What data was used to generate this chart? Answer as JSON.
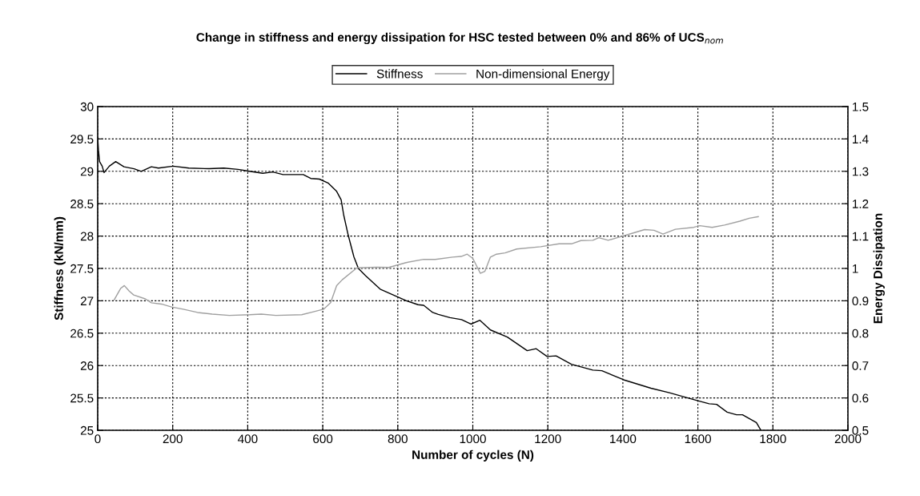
{
  "chart_data": {
    "type": "line",
    "title": "Change in stiffness and energy dissipation for HSC tested between 0% and 86% of UCS$_{nom}$",
    "xlabel": "Number of cycles (N)",
    "ylabel": "Stiffness (kN/mm)",
    "y2label": "Energy Dissipation",
    "xlim": [
      0,
      2000
    ],
    "xticks": [
      0,
      200,
      400,
      600,
      800,
      1000,
      1200,
      1400,
      1600,
      1800,
      2000
    ],
    "ylim": [
      25,
      30
    ],
    "yticks": [
      25,
      25.5,
      26,
      26.5,
      27,
      27.5,
      28,
      28.5,
      29,
      29.5,
      30
    ],
    "y2lim": [
      0.5,
      1.5
    ],
    "y2ticks": [
      0.5,
      0.6,
      0.7,
      0.8,
      0.9,
      1,
      1.1,
      1.2,
      1.3,
      1.4,
      1.5
    ],
    "grid": true,
    "legend": "top",
    "line_style": "solid",
    "marker": "none",
    "series": [
      {
        "name": "Stiffness",
        "color": "#000000",
        "x": [
          0,
          2,
          5,
          12,
          17,
          31,
          48,
          70,
          97,
          116,
          143,
          162,
          201,
          243,
          297,
          336,
          374,
          405,
          440,
          467,
          494,
          548,
          568,
          591,
          614,
          637,
          649,
          656,
          668,
          683,
          695,
          714,
          753,
          800,
          823,
          854,
          869,
          893,
          908,
          939,
          970,
          995,
          1019,
          1047,
          1092,
          1145,
          1169,
          1198,
          1222,
          1263,
          1320,
          1344,
          1402,
          1475,
          1524,
          1598,
          1630,
          1650,
          1678,
          1703,
          1719,
          1756,
          1768
        ],
        "values": [
          29.52,
          29.33,
          29.15,
          29.08,
          28.98,
          29.08,
          29.15,
          29.07,
          29.04,
          29.0,
          29.07,
          29.05,
          29.08,
          29.05,
          29.04,
          29.05,
          29.03,
          29.0,
          28.97,
          28.99,
          28.95,
          28.95,
          28.89,
          28.88,
          28.82,
          28.69,
          28.56,
          28.32,
          28.01,
          27.68,
          27.5,
          27.39,
          27.18,
          27.06,
          27.0,
          26.94,
          26.93,
          26.82,
          26.79,
          26.74,
          26.71,
          26.64,
          26.7,
          26.55,
          26.44,
          26.23,
          26.26,
          26.14,
          26.15,
          26.02,
          25.93,
          25.92,
          25.78,
          25.65,
          25.58,
          25.46,
          25.41,
          25.4,
          25.28,
          25.24,
          25.24,
          25.12,
          25.0
        ]
      },
      {
        "name": "Non-dimensional Energy",
        "color": "#a0a0a0",
        "axis": "y2",
        "x": [
          44,
          61,
          71,
          84,
          96,
          127,
          143,
          170,
          197,
          228,
          266,
          305,
          351,
          405,
          436,
          475,
          544,
          575,
          602,
          621,
          637,
          652,
          691,
          745,
          776,
          822,
          869,
          900,
          946,
          969,
          985,
          1000,
          1020,
          1032,
          1047,
          1063,
          1086,
          1117,
          1181,
          1230,
          1263,
          1288,
          1320,
          1336,
          1361,
          1385,
          1426,
          1458,
          1483,
          1507,
          1540,
          1589,
          1605,
          1638,
          1671,
          1712,
          1737,
          1761
        ],
        "values": [
          0.903,
          0.938,
          0.947,
          0.93,
          0.918,
          0.906,
          0.894,
          0.89,
          0.881,
          0.874,
          0.864,
          0.859,
          0.855,
          0.857,
          0.859,
          0.855,
          0.857,
          0.866,
          0.874,
          0.894,
          0.947,
          0.965,
          1.002,
          1.004,
          1.003,
          1.018,
          1.028,
          1.028,
          1.035,
          1.037,
          1.044,
          1.031,
          0.985,
          0.991,
          1.035,
          1.044,
          1.048,
          1.06,
          1.067,
          1.076,
          1.076,
          1.086,
          1.087,
          1.095,
          1.087,
          1.095,
          1.109,
          1.12,
          1.118,
          1.106,
          1.121,
          1.127,
          1.132,
          1.127,
          1.134,
          1.146,
          1.155,
          1.16
        ]
      }
    ]
  }
}
